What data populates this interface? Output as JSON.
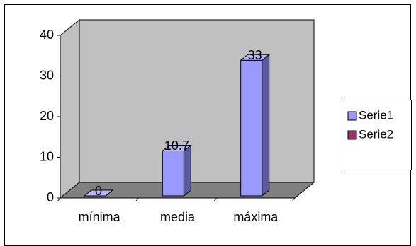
{
  "chart_data": {
    "type": "bar3d",
    "categories": [
      "mínima",
      "media",
      "máxima"
    ],
    "series": [
      {
        "name": "Serie1",
        "color": "#9999ff",
        "values": [
          0,
          10.7,
          33
        ]
      },
      {
        "name": "Serie2",
        "color": "#993366",
        "values": [
          null,
          null,
          null
        ]
      }
    ],
    "ylim": [
      0,
      40
    ],
    "yticks": [
      0,
      10,
      20,
      30,
      40
    ],
    "wall_color": "#c0c0c0",
    "floor_color": "#808080",
    "legend": "right"
  }
}
